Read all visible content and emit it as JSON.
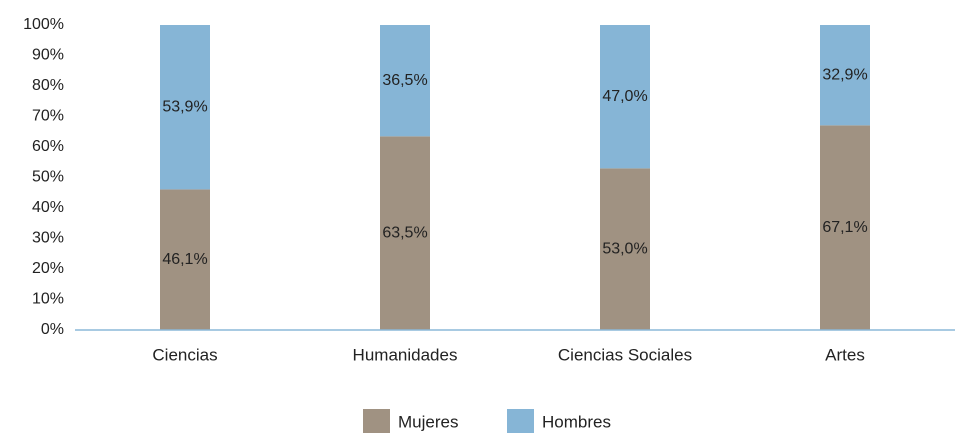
{
  "chart_data": {
    "type": "stacked_bar",
    "categories": [
      "Ciencias",
      "Humanidades",
      "Ciencias Sociales",
      "Artes"
    ],
    "series": [
      {
        "name": "Mujeres",
        "color": "#a09282",
        "values": [
          46.1,
          63.5,
          53.0,
          67.1
        ],
        "value_labels": [
          "46,1%",
          "63,5%",
          "53,0%",
          "67,1%"
        ]
      },
      {
        "name": "Hombres",
        "color": "#86b5d6",
        "values": [
          53.9,
          36.5,
          47.0,
          32.9
        ],
        "value_labels": [
          "53,9%",
          "36,5%",
          "47,0%",
          "32,9%"
        ]
      }
    ],
    "ylim": [
      0,
      100
    ],
    "yticks": [
      {
        "value": 0,
        "label": "0%"
      },
      {
        "value": 10,
        "label": "10%"
      },
      {
        "value": 20,
        "label": "20%"
      },
      {
        "value": 30,
        "label": "30%"
      },
      {
        "value": 40,
        "label": "40%"
      },
      {
        "value": 50,
        "label": "50%"
      },
      {
        "value": 60,
        "label": "60%"
      },
      {
        "value": 70,
        "label": "70%"
      },
      {
        "value": 80,
        "label": "80%"
      },
      {
        "value": 90,
        "label": "90%"
      },
      {
        "value": 100,
        "label": "100%"
      }
    ],
    "legend": "bottom"
  }
}
